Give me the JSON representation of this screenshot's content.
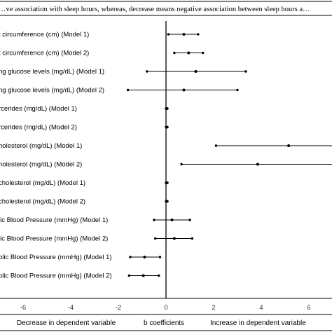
{
  "chart_data": {
    "type": "scatter",
    "title": "…ve association with sleep hours, whereas, decrease means negative association between sleep hours a…",
    "xlabel": "b coefficients",
    "xlim": [
      -7,
      7
    ],
    "xticks": [
      -6,
      -4,
      -2,
      0,
      2,
      4,
      6
    ],
    "footer_left": "Decrease in dependent  variable",
    "footer_right": "Increase in dependent  variable",
    "rows": [
      {
        "label": "t circumference (cm) (Model 1)",
        "b": 0.75,
        "lo": 0.1,
        "hi": 1.35
      },
      {
        "label": "t circumference (cm) (Model 2)",
        "b": 0.95,
        "lo": 0.35,
        "hi": 1.55
      },
      {
        "label": "ng glucose levels (mg/dL) (Model 1)",
        "b": 1.25,
        "lo": -0.8,
        "hi": 3.35
      },
      {
        "label": "ng glucose levels (mg/dL) (Model 2)",
        "b": 0.75,
        "lo": -1.6,
        "hi": 3.0
      },
      {
        "label": "rcerides (mg/dL) (Model 1)",
        "b": 0.03,
        "lo": 0.0,
        "hi": 0.06
      },
      {
        "label": "rcerides (mg/dL) (Model 2)",
        "b": 0.03,
        "lo": 0.0,
        "hi": 0.06
      },
      {
        "label": "holesterol (mg/dL) (Model 1)",
        "b": 5.15,
        "lo": 2.1,
        "hi": 7.0
      },
      {
        "label": "holesterol (mg/dL) (Model 2)",
        "b": 3.85,
        "lo": 0.65,
        "hi": 7.0
      },
      {
        "label": "cholesterol (mg/dL) (Model 1)",
        "b": 0.03,
        "lo": 0.0,
        "hi": 0.06
      },
      {
        "label": "cholesterol (mg/dL) (Model 2)",
        "b": 0.03,
        "lo": 0.0,
        "hi": 0.06
      },
      {
        "label": "lic Blood Pressure (mmHg) (Model 1)",
        "b": 0.25,
        "lo": -0.5,
        "hi": 1.0
      },
      {
        "label": "lic Blood Pressure (mmHg) (Model 2)",
        "b": 0.35,
        "lo": -0.45,
        "hi": 1.1
      },
      {
        "label": "olic Blood Pressure (mmHg) (Model 1)",
        "b": -0.9,
        "lo": -1.5,
        "hi": -0.25
      },
      {
        "label": "olic Blood Pressure (mmHg) (Model 2)",
        "b": -0.95,
        "lo": -1.55,
        "hi": -0.3
      }
    ]
  }
}
